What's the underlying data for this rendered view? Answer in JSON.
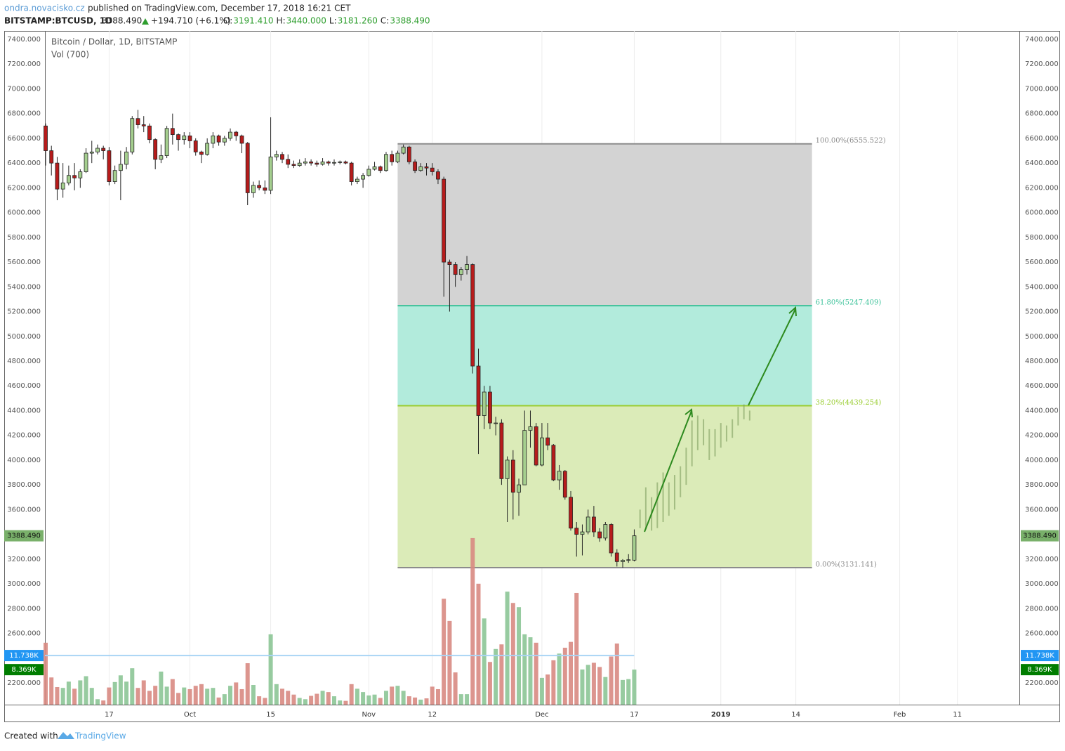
{
  "header": {
    "author": "ondra.novacisko.cz",
    "published": "published on TradingView.com, December 17, 2018 16:21 CET",
    "symbol": "BITSTAMP:BTCUSD, 1D",
    "last": "3388.490",
    "change": "+194.710 (+6.1%)",
    "ohlc": [
      {
        "key": "O:",
        "value": "3191.410"
      },
      {
        "key": "H:",
        "value": "3440.000"
      },
      {
        "key": "L:",
        "value": "3181.260"
      },
      {
        "key": "C:",
        "value": "3388.490"
      }
    ]
  },
  "footer": {
    "created": "Created with",
    "brand": "TradingView"
  },
  "chart_data": {
    "type": "candlestick",
    "title": "Bitcoin / Dollar, 1D, BITSTAMP",
    "ylim": [
      2024,
      7468
    ],
    "yticks": [
      {
        "value": 2200,
        "label": "2200.000"
      },
      {
        "value": 2400,
        "label": "2400.000"
      },
      {
        "value": 2600,
        "label": "2600.000"
      },
      {
        "value": 2800,
        "label": "2800.000"
      },
      {
        "value": 3000,
        "label": "3000.000"
      },
      {
        "value": 3200,
        "label": "3200.000"
      },
      {
        "value": 3400,
        "label": "3400.000"
      },
      {
        "value": 3600,
        "label": "3600.000"
      },
      {
        "value": 3800,
        "label": "3800.000"
      },
      {
        "value": 4000,
        "label": "4000.000"
      },
      {
        "value": 4200,
        "label": "4200.000"
      },
      {
        "value": 4400,
        "label": "4400.000"
      },
      {
        "value": 4600,
        "label": "4600.000"
      },
      {
        "value": 4800,
        "label": "4800.000"
      },
      {
        "value": 5000,
        "label": "5000.000"
      },
      {
        "value": 5200,
        "label": "5200.000"
      },
      {
        "value": 5400,
        "label": "5400.000"
      },
      {
        "value": 5600,
        "label": "5600.000"
      },
      {
        "value": 5800,
        "label": "5800.000"
      },
      {
        "value": 6000,
        "label": "6000.000"
      },
      {
        "value": 6200,
        "label": "6200.000"
      },
      {
        "value": 6400,
        "label": "6400.000"
      },
      {
        "value": 6600,
        "label": "6600.000"
      },
      {
        "value": 6800,
        "label": "6800.000"
      },
      {
        "value": 7000,
        "label": "7000.000"
      },
      {
        "value": 7200,
        "label": "7200.000"
      },
      {
        "value": 7400,
        "label": "7400.000"
      }
    ],
    "xticks": [
      "17",
      "Oct",
      "15",
      "Nov",
      "12",
      "Dec",
      "17",
      "2019",
      "14",
      "Feb",
      "11"
    ],
    "grid": true,
    "up_color": "#a5cf8f",
    "down_color": "#b71c1c",
    "candles": [
      [
        6700,
        6720,
        6380,
        6500
      ],
      [
        6500,
        6540,
        6300,
        6400
      ],
      [
        6400,
        6450,
        6100,
        6190
      ],
      [
        6190,
        6400,
        6120,
        6240
      ],
      [
        6240,
        6380,
        6220,
        6300
      ],
      [
        6300,
        6400,
        6180,
        6280
      ],
      [
        6280,
        6350,
        6200,
        6330
      ],
      [
        6330,
        6520,
        6320,
        6480
      ],
      [
        6480,
        6580,
        6400,
        6490
      ],
      [
        6490,
        6550,
        6470,
        6520
      ],
      [
        6520,
        6540,
        6430,
        6500
      ],
      [
        6500,
        6530,
        6220,
        6250
      ],
      [
        6250,
        6380,
        6230,
        6340
      ],
      [
        6340,
        6500,
        6100,
        6390
      ],
      [
        6390,
        6530,
        6350,
        6490
      ],
      [
        6490,
        6780,
        6470,
        6760
      ],
      [
        6760,
        6830,
        6680,
        6710
      ],
      [
        6710,
        6780,
        6650,
        6700
      ],
      [
        6700,
        6720,
        6560,
        6590
      ],
      [
        6590,
        6600,
        6350,
        6430
      ],
      [
        6430,
        6550,
        6400,
        6460
      ],
      [
        6460,
        6700,
        6440,
        6680
      ],
      [
        6680,
        6800,
        6550,
        6630
      ],
      [
        6630,
        6640,
        6500,
        6590
      ],
      [
        6590,
        6650,
        6550,
        6620
      ],
      [
        6620,
        6650,
        6520,
        6580
      ],
      [
        6580,
        6600,
        6460,
        6490
      ],
      [
        6490,
        6500,
        6400,
        6470
      ],
      [
        6470,
        6600,
        6460,
        6560
      ],
      [
        6560,
        6650,
        6520,
        6620
      ],
      [
        6620,
        6630,
        6540,
        6570
      ],
      [
        6570,
        6620,
        6540,
        6600
      ],
      [
        6600,
        6680,
        6580,
        6650
      ],
      [
        6650,
        6660,
        6580,
        6620
      ],
      [
        6620,
        6630,
        6480,
        6560
      ],
      [
        6560,
        6570,
        6060,
        6160
      ],
      [
        6160,
        6250,
        6120,
        6220
      ],
      [
        6220,
        6260,
        6180,
        6200
      ],
      [
        6200,
        6260,
        6150,
        6180
      ],
      [
        6180,
        6770,
        6150,
        6450
      ],
      [
        6450,
        6500,
        6420,
        6470
      ],
      [
        6470,
        6490,
        6400,
        6430
      ],
      [
        6430,
        6470,
        6360,
        6390
      ],
      [
        6390,
        6420,
        6360,
        6380
      ],
      [
        6380,
        6430,
        6370,
        6400
      ],
      [
        6400,
        6440,
        6380,
        6410
      ],
      [
        6410,
        6430,
        6380,
        6400
      ],
      [
        6400,
        6420,
        6370,
        6390
      ],
      [
        6390,
        6440,
        6380,
        6410
      ],
      [
        6410,
        6420,
        6380,
        6400
      ],
      [
        6400,
        6430,
        6380,
        6405
      ],
      [
        6405,
        6420,
        6390,
        6410
      ],
      [
        6410,
        6420,
        6390,
        6400
      ],
      [
        6400,
        6410,
        6220,
        6250
      ],
      [
        6250,
        6290,
        6230,
        6270
      ],
      [
        6270,
        6320,
        6200,
        6300
      ],
      [
        6300,
        6380,
        6290,
        6350
      ],
      [
        6350,
        6410,
        6340,
        6370
      ],
      [
        6370,
        6380,
        6320,
        6340
      ],
      [
        6340,
        6490,
        6330,
        6470
      ],
      [
        6470,
        6500,
        6380,
        6410
      ],
      [
        6410,
        6500,
        6400,
        6480
      ],
      [
        6480,
        6550,
        6470,
        6530
      ],
      [
        6530,
        6540,
        6390,
        6410
      ],
      [
        6410,
        6430,
        6320,
        6340
      ],
      [
        6340,
        6400,
        6330,
        6370
      ],
      [
        6370,
        6400,
        6300,
        6360
      ],
      [
        6360,
        6400,
        6300,
        6330
      ],
      [
        6330,
        6350,
        6230,
        6270
      ],
      [
        6270,
        6290,
        5320,
        5600
      ],
      [
        5600,
        5620,
        5200,
        5580
      ],
      [
        5580,
        5600,
        5400,
        5500
      ],
      [
        5500,
        5560,
        5450,
        5540
      ],
      [
        5540,
        5650,
        5500,
        5580
      ],
      [
        5580,
        5590,
        4700,
        4760
      ],
      [
        4760,
        4900,
        4050,
        4360
      ],
      [
        4360,
        4600,
        4250,
        4550
      ],
      [
        4550,
        4600,
        4250,
        4300
      ],
      [
        4300,
        4350,
        4200,
        4300
      ],
      [
        4300,
        4330,
        3800,
        3850
      ],
      [
        3850,
        4030,
        3500,
        4000
      ],
      [
        4000,
        4080,
        3520,
        3740
      ],
      [
        3740,
        3850,
        3550,
        3800
      ],
      [
        3800,
        4400,
        3800,
        4240
      ],
      [
        4240,
        4400,
        4100,
        4270
      ],
      [
        4270,
        4300,
        3950,
        3960
      ],
      [
        3960,
        4300,
        3950,
        4180
      ],
      [
        4180,
        4300,
        4080,
        4120
      ],
      [
        4120,
        4130,
        3830,
        3840
      ],
      [
        3840,
        3960,
        3760,
        3910
      ],
      [
        3910,
        3920,
        3680,
        3700
      ],
      [
        3700,
        3750,
        3430,
        3450
      ],
      [
        3450,
        3500,
        3220,
        3400
      ],
      [
        3400,
        3480,
        3230,
        3420
      ],
      [
        3420,
        3600,
        3400,
        3540
      ],
      [
        3540,
        3630,
        3380,
        3420
      ],
      [
        3420,
        3450,
        3340,
        3370
      ],
      [
        3370,
        3500,
        3350,
        3480
      ],
      [
        3480,
        3490,
        3220,
        3250
      ],
      [
        3250,
        3280,
        3140,
        3180
      ],
      [
        3180,
        3200,
        3130,
        3190
      ],
      [
        3190,
        3240,
        3170,
        3195
      ],
      [
        3191.41,
        3440,
        3181.26,
        3388.49
      ]
    ],
    "last_price": {
      "value": 3388.49,
      "label": "3388.490",
      "color": "#79b06a"
    },
    "volume": {
      "name": "Vol (700)",
      "ylim": [
        0,
        161
      ],
      "up_color": "#8cc596",
      "down_color": "#d88a82",
      "values": [
        14.8,
        6.5,
        4.2,
        4.0,
        5.5,
        3.8,
        5.8,
        6.8,
        4.0,
        1.3,
        1.0,
        4.1,
        5.4,
        7.0,
        5.5,
        8.7,
        4.0,
        5.8,
        3.3,
        4.5,
        7.9,
        4.3,
        6.1,
        2.8,
        4.1,
        3.7,
        4.5,
        4.9,
        3.8,
        4.0,
        1.7,
        2.5,
        4.5,
        5.3,
        3.7,
        9.9,
        4.7,
        2.0,
        1.6,
        16.8,
        4.9,
        3.8,
        3.3,
        2.4,
        1.6,
        1.3,
        2.1,
        2.6,
        3.3,
        3.0,
        2.0,
        1.0,
        0.9,
        4.9,
        3.8,
        3.0,
        2.2,
        2.4,
        1.6,
        3.3,
        4.3,
        4.5,
        3.3,
        2.0,
        1.7,
        1.2,
        1.5,
        4.3,
        3.7,
        25.3,
        20.0,
        7.7,
        2.5,
        2.5,
        39.8,
        28.9,
        20.6,
        10.2,
        13.3,
        14.4,
        27.0,
        24.3,
        23.3,
        16.8,
        16.1,
        14.8,
        6.4,
        7.2,
        10.6,
        12.2,
        13.6,
        15.0,
        26.7,
        8.4,
        9.5,
        10.0,
        9.0,
        6.6,
        11.5,
        14.6,
        5.9,
        6.1,
        8.369
      ],
      "last_label": "8.369K",
      "last_color": "#007d00",
      "ma": {
        "value": 11.738,
        "label": "11.738K",
        "color": "#2196f3"
      }
    },
    "projection": {
      "color": "#7f9f5f",
      "bars": [
        [
          3450,
          3600
        ],
        [
          3440,
          3780
        ],
        [
          3430,
          3700
        ],
        [
          3450,
          3820
        ],
        [
          3500,
          3900
        ],
        [
          3550,
          3820
        ],
        [
          3600,
          3880
        ],
        [
          3700,
          3950
        ],
        [
          3800,
          4100
        ],
        [
          3950,
          4320
        ],
        [
          4080,
          4360
        ],
        [
          4120,
          4330
        ],
        [
          4000,
          4250
        ],
        [
          4030,
          4250
        ],
        [
          4100,
          4300
        ],
        [
          4150,
          4280
        ],
        [
          4180,
          4330
        ],
        [
          4280,
          4430
        ],
        [
          4330,
          4450
        ],
        [
          4320,
          4400
        ]
      ]
    },
    "fib_levels": [
      {
        "label": "100.00%(6555.522)",
        "value": 6555.522,
        "color": "#8c8c8c",
        "fill": "#d3d3d3"
      },
      {
        "label": "61.80%(5247.409)",
        "value": 5247.409,
        "color": "#3cc29a",
        "fill": "#b2ebdc"
      },
      {
        "label": "38.20%(4439.254)",
        "value": 4439.254,
        "color": "#9acd32",
        "fill": "#dbebb8"
      },
      {
        "label": "0.00%(3131.141)",
        "value": 3131.141,
        "color": "#8c8c8c"
      }
    ]
  }
}
